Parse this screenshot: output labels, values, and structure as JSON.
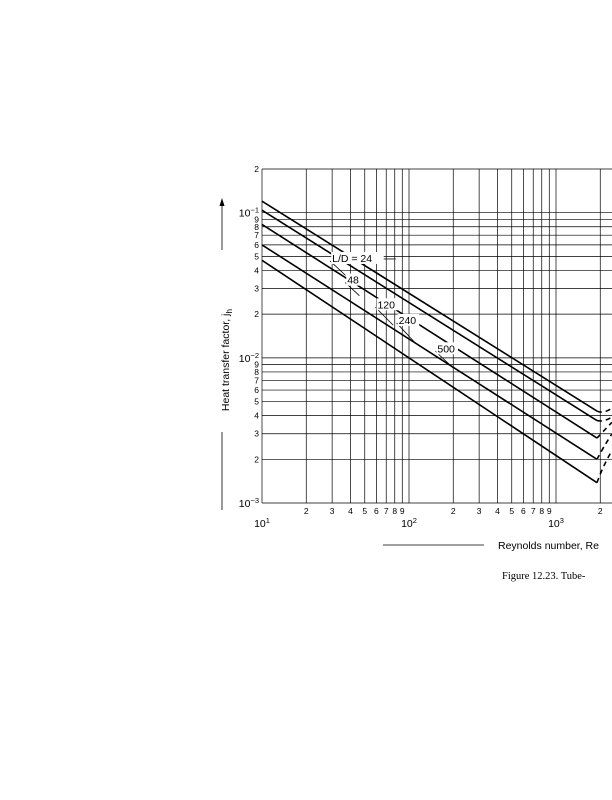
{
  "chart_data": {
    "type": "line",
    "xlabel": "Reynolds number, Re",
    "ylabel_prefix": "Heat transfer factor, j",
    "ylabel_subscript": "h",
    "caption": "Figure 12.23.    Tube-",
    "x_scale": "log",
    "y_scale": "log",
    "xlim": [
      10,
      2000
    ],
    "ylim": [
      0.001,
      0.2
    ],
    "grid": true,
    "x_major_ticks": [
      {
        "value": 10,
        "base": "10",
        "exp": "1"
      },
      {
        "value": 100,
        "base": "10",
        "exp": "2"
      },
      {
        "value": 1000,
        "base": "10",
        "exp": "3"
      }
    ],
    "x_minor_ticks": [
      {
        "value": 20,
        "label": "2"
      },
      {
        "value": 30,
        "label": "3"
      },
      {
        "value": 40,
        "label": "4"
      },
      {
        "value": 50,
        "label": "5"
      },
      {
        "value": 60,
        "label": "6"
      },
      {
        "value": 70,
        "label": "7"
      },
      {
        "value": 80,
        "label": "8"
      },
      {
        "value": 90,
        "label": "9"
      },
      {
        "value": 200,
        "label": "2"
      },
      {
        "value": 300,
        "label": "3"
      },
      {
        "value": 400,
        "label": "4"
      },
      {
        "value": 500,
        "label": "5"
      },
      {
        "value": 600,
        "label": "6"
      },
      {
        "value": 700,
        "label": "7"
      },
      {
        "value": 800,
        "label": "8"
      },
      {
        "value": 900,
        "label": "9"
      },
      {
        "value": 2000,
        "label": "2"
      }
    ],
    "y_major_ticks": [
      {
        "value": 0.1,
        "base": "10",
        "exp": "−1"
      },
      {
        "value": 0.01,
        "base": "10",
        "exp": "−2"
      },
      {
        "value": 0.001,
        "base": "10",
        "exp": "−3"
      }
    ],
    "y_minor_ticks": [
      {
        "value": 0.2,
        "label": "2"
      },
      {
        "value": 0.09,
        "label": "9"
      },
      {
        "value": 0.08,
        "label": "8"
      },
      {
        "value": 0.07,
        "label": "7"
      },
      {
        "value": 0.06,
        "label": "6"
      },
      {
        "value": 0.05,
        "label": "5"
      },
      {
        "value": 0.04,
        "label": "4"
      },
      {
        "value": 0.03,
        "label": "3"
      },
      {
        "value": 0.02,
        "label": "2"
      },
      {
        "value": 0.009,
        "label": "9"
      },
      {
        "value": 0.008,
        "label": "8"
      },
      {
        "value": 0.007,
        "label": "7"
      },
      {
        "value": 0.006,
        "label": "6"
      },
      {
        "value": 0.005,
        "label": "5"
      },
      {
        "value": 0.004,
        "label": "4"
      },
      {
        "value": 0.003,
        "label": "3"
      },
      {
        "value": 0.002,
        "label": "2"
      }
    ],
    "series": [
      {
        "name": "L/D = 24",
        "x": [
          10,
          1900
        ],
        "y": [
          0.12,
          0.0043
        ],
        "dash_end": [
          0.0041,
          0.0045
        ]
      },
      {
        "name": "48",
        "x": [
          10,
          1900
        ],
        "y": [
          0.104,
          0.0037
        ],
        "dash_end": [
          0.0036,
          0.0039
        ]
      },
      {
        "name": "120",
        "x": [
          10,
          1900
        ],
        "y": [
          0.083,
          0.0028
        ],
        "dash_end": [
          0.0031,
          0.0036
        ]
      },
      {
        "name": "240",
        "x": [
          10,
          1900
        ],
        "y": [
          0.06,
          0.002
        ],
        "dash_end": [
          0.0024,
          0.003
        ]
      },
      {
        "name": "500",
        "x": [
          10,
          1900
        ],
        "y": [
          0.047,
          0.00138
        ],
        "dash_end": [
          0.0018,
          0.0023
        ]
      }
    ],
    "annotations": [
      {
        "text": "L/D = 24",
        "label_x": 30,
        "label_y": 0.0465,
        "target_x": 37,
        "target_y": 0.037
      },
      {
        "text": "48",
        "label_x": 38,
        "label_y": 0.033,
        "target_x": 46,
        "target_y": 0.0268
      },
      {
        "text": "120",
        "label_x": 61,
        "label_y": 0.0223,
        "target_x": 78,
        "target_y": 0.0168
      },
      {
        "text": "240",
        "label_x": 85,
        "label_y": 0.0174,
        "target_x": 110,
        "target_y": 0.0127
      },
      {
        "text": "500",
        "label_x": 156,
        "label_y": 0.0111,
        "target_x": 200,
        "target_y": 0.0085
      }
    ]
  }
}
